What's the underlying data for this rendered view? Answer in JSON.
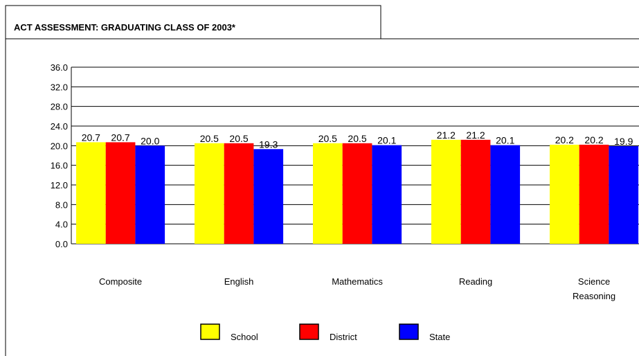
{
  "chart_data": {
    "type": "bar",
    "title": "ACT ASSESSMENT: GRADUATING CLASS OF 2003*",
    "categories": [
      "Composite",
      "English",
      "Mathematics",
      "Reading",
      "Science Reasoning"
    ],
    "series": [
      {
        "name": "School",
        "color": "#ffff00",
        "values": [
          20.7,
          20.5,
          20.5,
          21.2,
          20.2
        ]
      },
      {
        "name": "District",
        "color": "#ff0000",
        "values": [
          20.7,
          20.5,
          20.5,
          21.2,
          20.2
        ]
      },
      {
        "name": "State",
        "color": "#0000ff",
        "values": [
          20.0,
          19.3,
          20.1,
          20.1,
          19.9
        ]
      }
    ],
    "value_labels": [
      [
        "20.7",
        "20.5",
        "20.5",
        "21.2",
        "20.2"
      ],
      [
        "20.7",
        "20.5",
        "20.5",
        "21.2",
        "20.2"
      ],
      [
        "20.0",
        "19.3",
        "20.1",
        "20.1",
        "19.9"
      ]
    ],
    "ylim": [
      0,
      36
    ],
    "yticks": [
      {
        "value": 0,
        "label": "0.0"
      },
      {
        "value": 4,
        "label": "4.0"
      },
      {
        "value": 8,
        "label": "8.0"
      },
      {
        "value": 12,
        "label": "12.0"
      },
      {
        "value": 16,
        "label": "16.0"
      },
      {
        "value": 20,
        "label": "20.0"
      },
      {
        "value": 24,
        "label": "24.0"
      },
      {
        "value": 28,
        "label": "28.0"
      },
      {
        "value": 32,
        "label": "32.0"
      },
      {
        "value": 36,
        "label": "36.0"
      }
    ],
    "grid": true,
    "legend": "bottom"
  }
}
